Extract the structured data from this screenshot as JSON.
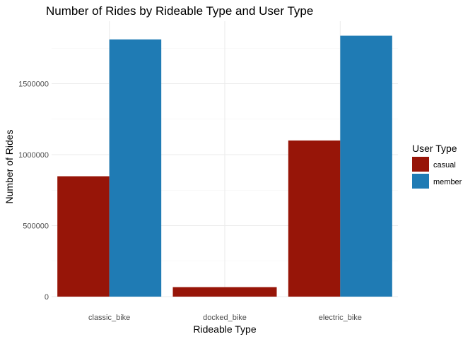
{
  "chart_data": {
    "type": "bar",
    "title": "Number of Rides by Rideable Type and User Type",
    "xlabel": "Rideable Type",
    "ylabel": "Number of Rides",
    "categories": [
      "classic_bike",
      "docked_bike",
      "electric_bike"
    ],
    "series": [
      {
        "name": "casual",
        "color": "#971508",
        "values": [
          848000,
          67000,
          1100000
        ]
      },
      {
        "name": "member",
        "color": "#1f7bb4",
        "values": [
          1812000,
          null,
          1838000
        ]
      }
    ],
    "ylim": [
      0,
      1900000
    ],
    "yticks": [
      0,
      500000,
      1000000,
      1500000
    ],
    "ytick_labels": [
      "0",
      "500000",
      "1000000",
      "1500000"
    ],
    "grid": true,
    "legend": {
      "title": "User Type",
      "position": "right"
    }
  }
}
